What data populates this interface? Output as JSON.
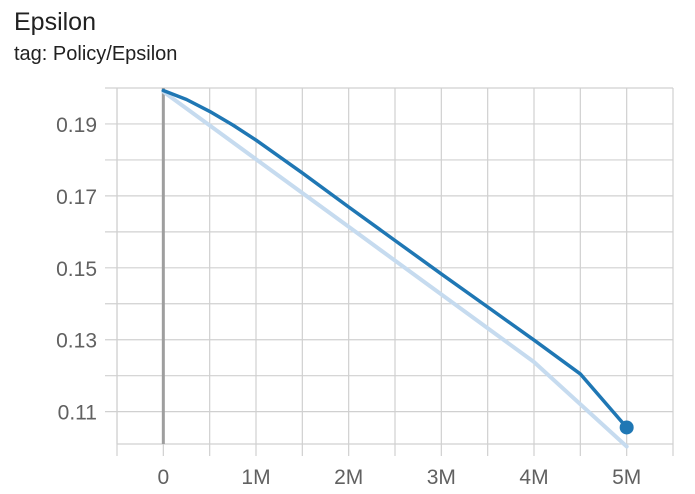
{
  "card": {
    "title": "Epsilon",
    "tag": "tag: Policy/Epsilon"
  },
  "colors": {
    "series": "#1f77b4",
    "smoothed_raw": "#c6dbef",
    "grid": "#d0d0d0",
    "axis": "#9e9e9e"
  },
  "chart_data": {
    "type": "line",
    "title": "Epsilon",
    "xlabel": "",
    "ylabel": "",
    "xlim": [
      -500000,
      5500000
    ],
    "ylim": [
      0.101,
      0.2
    ],
    "x_ticks": [
      0,
      1000000,
      2000000,
      3000000,
      4000000,
      5000000
    ],
    "x_tick_labels": [
      "0",
      "1M",
      "2M",
      "3M",
      "4M",
      "5M"
    ],
    "y_ticks": [
      0.11,
      0.13,
      0.15,
      0.17,
      0.19
    ],
    "y_tick_labels": [
      "0.11",
      "0.13",
      "0.15",
      "0.17",
      "0.19"
    ],
    "grid": true,
    "series": [
      {
        "role": "raw",
        "x": [
          0,
          1000000,
          2000000,
          3000000,
          4000000,
          5000000
        ],
        "values": [
          0.199,
          0.1802,
          0.1614,
          0.1426,
          0.1238,
          0.1003
        ]
      },
      {
        "role": "smoothed",
        "x": [
          0,
          250000,
          500000,
          750000,
          1000000,
          1500000,
          2000000,
          2500000,
          3000000,
          3500000,
          4000000,
          4500000,
          5000000
        ],
        "values": [
          0.1993,
          0.1968,
          0.1935,
          0.1897,
          0.1855,
          0.1764,
          0.1669,
          0.1576,
          0.1483,
          0.1391,
          0.1299,
          0.1205,
          0.1056
        ]
      }
    ],
    "end_marker": {
      "x": 5000000,
      "y": 0.1056
    }
  }
}
